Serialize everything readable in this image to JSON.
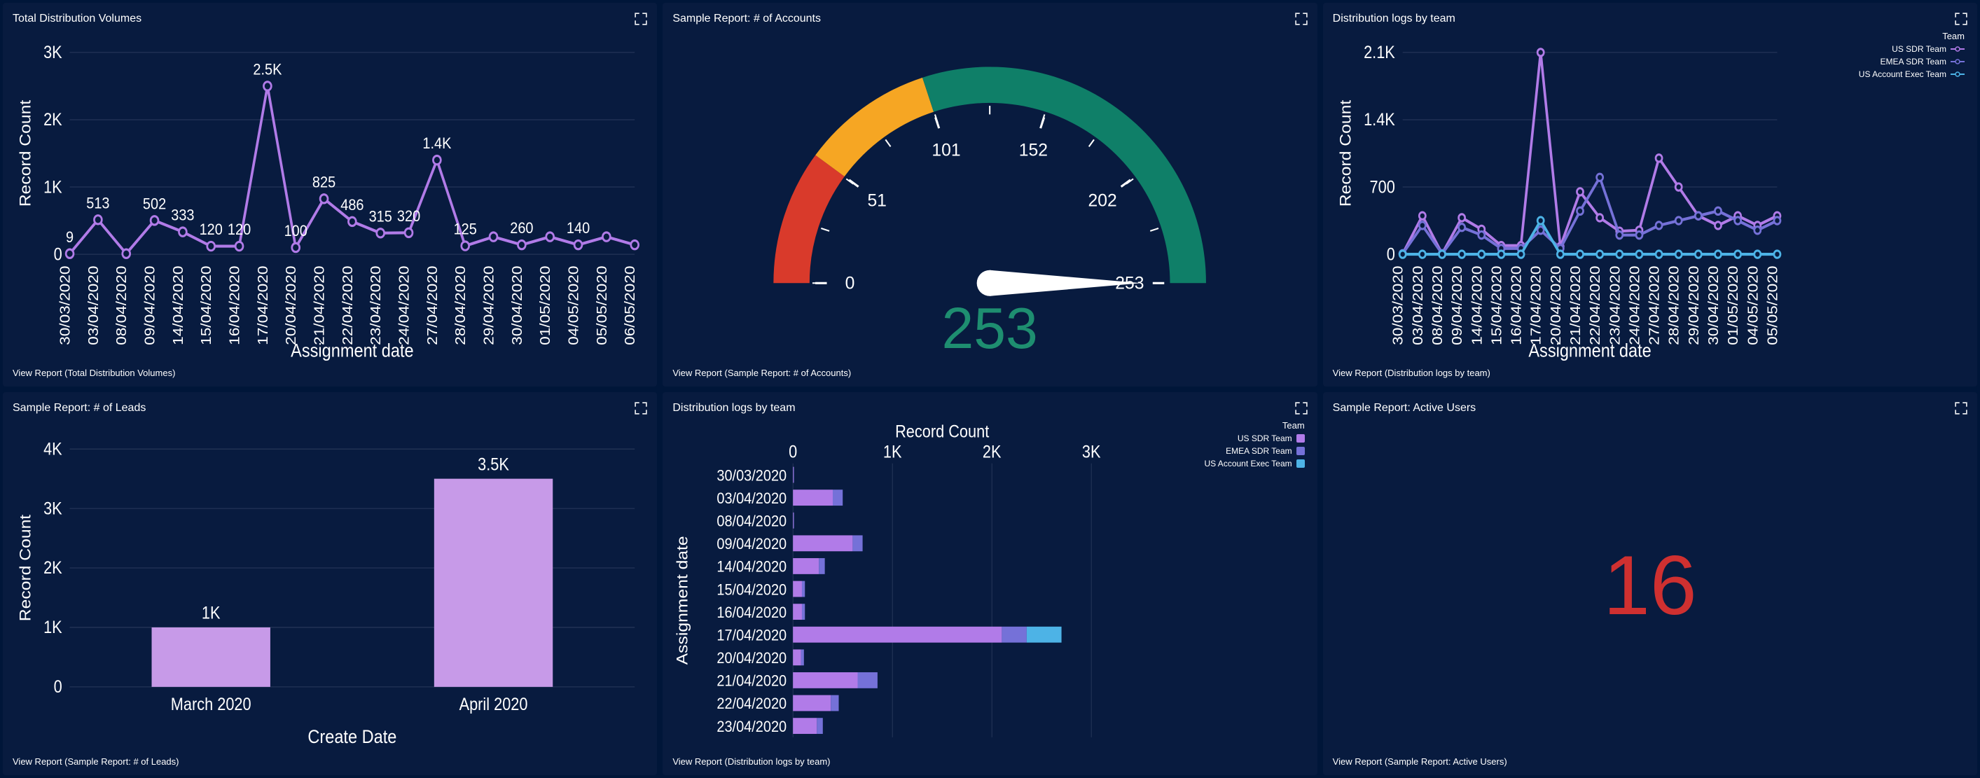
{
  "colors": {
    "bg": "#081b3f",
    "page_bg": "#001639",
    "text": "#ffffff",
    "line_primary": "#b17be8",
    "line_us_sdr": "#b17be8",
    "line_emea": "#7571d8",
    "line_us_ae": "#4db3e6",
    "bar_fill": "#c79ae8",
    "gauge_red": "#d93a2b",
    "gauge_orange": "#f6a623",
    "gauge_green": "#0f7f68",
    "gauge_value": "#1e8e70",
    "big_num": "#cf3030",
    "grid": "#2a3a5c"
  },
  "panels": {
    "tdv": {
      "title": "Total Distribution Volumes",
      "y_label": "Record Count",
      "x_label": "Assignment date",
      "y_ticks": [
        0,
        "1K",
        "2K",
        "3K"
      ],
      "y_tick_vals": [
        0,
        1000,
        2000,
        3000
      ],
      "x_cats": [
        "30/03/2020",
        "03/04/2020",
        "08/04/2020",
        "09/04/2020",
        "14/04/2020",
        "15/04/2020",
        "16/04/2020",
        "17/04/2020",
        "20/04/2020",
        "21/04/2020",
        "22/04/2020",
        "23/04/2020",
        "24/04/2020",
        "27/04/2020",
        "28/04/2020",
        "29/04/2020",
        "30/04/2020",
        "01/05/2020",
        "04/05/2020",
        "05/05/2020",
        "06/05/2020"
      ],
      "values": [
        9,
        513,
        9,
        502,
        333,
        120,
        120,
        2500,
        100,
        825,
        486,
        315,
        320,
        1400,
        125,
        260,
        140,
        260,
        140,
        260,
        140
      ],
      "shown_values": {
        "1": "513",
        "3": "502",
        "4": "333",
        "5": "120",
        "6": "120",
        "7": "2.5K",
        "8": "100",
        "9": "825",
        "10": "486",
        "11": "315",
        "12": "320",
        "13": "1.4K",
        "14": "125",
        "16": "260",
        "18": "140"
      },
      "first_label": "9",
      "footer": "View Report (Total Distribution Volumes)"
    },
    "accounts": {
      "title": "Sample Report: # of Accounts",
      "value": 253,
      "value_str": "253",
      "min": 0,
      "max": 253,
      "ticks": [
        0,
        51,
        101,
        152,
        202,
        253
      ],
      "seg_red_end": 51,
      "seg_orange_end": 101,
      "footer": "View Report (Sample Report: # of Accounts)"
    },
    "dlbt_line": {
      "title": "Distribution logs by team",
      "y_label": "Record Count",
      "x_label": "Assignment date",
      "y_ticks": [
        "0",
        "700",
        "1.4K",
        "2.1K"
      ],
      "y_tick_vals": [
        0,
        700,
        1400,
        2100
      ],
      "legend_title": "Team",
      "legend": [
        {
          "label": "US SDR Team",
          "color": "#b17be8"
        },
        {
          "label": "EMEA SDR Team",
          "color": "#7571d8"
        },
        {
          "label": "US Account Exec Team",
          "color": "#4db3e6"
        }
      ],
      "x_cats": [
        "30/03/2020",
        "03/04/2020",
        "08/04/2020",
        "09/04/2020",
        "14/04/2020",
        "15/04/2020",
        "16/04/2020",
        "17/04/2020",
        "20/04/2020",
        "21/04/2020",
        "22/04/2020",
        "23/04/2020",
        "24/04/2020",
        "27/04/2020",
        "28/04/2020",
        "29/04/2020",
        "30/04/2020",
        "01/05/2020",
        "04/05/2020",
        "05/05/2020"
      ],
      "series": {
        "us_sdr": [
          5,
          400,
          5,
          380,
          260,
          90,
          90,
          2100,
          80,
          650,
          380,
          240,
          250,
          1000,
          700,
          400,
          300,
          400,
          300,
          400
        ],
        "emea": [
          5,
          300,
          5,
          280,
          200,
          60,
          60,
          250,
          60,
          450,
          800,
          200,
          200,
          300,
          350,
          400,
          450,
          350,
          250,
          350
        ],
        "us_ae": [
          0,
          0,
          0,
          0,
          0,
          0,
          0,
          350,
          0,
          0,
          0,
          0,
          0,
          0,
          0,
          0,
          0,
          0,
          0,
          0
        ]
      },
      "footer": "View Report (Distribution logs by team)"
    },
    "leads": {
      "title": "Sample Report: # of Leads",
      "y_label": "Record Count",
      "x_label": "Create Date",
      "y_ticks": [
        "0",
        "1K",
        "2K",
        "3K",
        "4K"
      ],
      "y_tick_vals": [
        0,
        1000,
        2000,
        3000,
        4000
      ],
      "bars": [
        {
          "label": "March 2020",
          "value": 1000,
          "display": "1K"
        },
        {
          "label": "April 2020",
          "value": 3500,
          "display": "3.5K"
        }
      ],
      "footer": "View Report (Sample Report: # of Leads)"
    },
    "dlbt_bar": {
      "title": "Distribution logs by team",
      "x_label": "Record Count",
      "y_label": "Assignment date",
      "x_ticks": [
        "0",
        "1K",
        "2K",
        "3K"
      ],
      "x_tick_vals": [
        0,
        1000,
        2000,
        3000
      ],
      "legend_title": "Team",
      "legend": [
        {
          "label": "US SDR Team",
          "color": "#b17be8"
        },
        {
          "label": "EMEA SDR Team",
          "color": "#7571d8"
        },
        {
          "label": "US Account Exec Team",
          "color": "#4db3e6"
        }
      ],
      "rows": [
        {
          "label": "30/03/2020",
          "us": 5,
          "emea": 5,
          "ae": 0
        },
        {
          "label": "03/04/2020",
          "us": 400,
          "emea": 100,
          "ae": 0
        },
        {
          "label": "08/04/2020",
          "us": 5,
          "emea": 5,
          "ae": 0
        },
        {
          "label": "09/04/2020",
          "us": 600,
          "emea": 100,
          "ae": 0
        },
        {
          "label": "14/04/2020",
          "us": 260,
          "emea": 60,
          "ae": 0
        },
        {
          "label": "15/04/2020",
          "us": 90,
          "emea": 30,
          "ae": 0
        },
        {
          "label": "16/04/2020",
          "us": 90,
          "emea": 30,
          "ae": 0
        },
        {
          "label": "17/04/2020",
          "us": 2100,
          "emea": 250,
          "ae": 350
        },
        {
          "label": "20/04/2020",
          "us": 80,
          "emea": 30,
          "ae": 0
        },
        {
          "label": "21/04/2020",
          "us": 650,
          "emea": 200,
          "ae": 0
        },
        {
          "label": "22/04/2020",
          "us": 380,
          "emea": 80,
          "ae": 0
        },
        {
          "label": "23/04/2020",
          "us": 240,
          "emea": 60,
          "ae": 0
        }
      ],
      "footer": "View Report (Distribution logs by team)"
    },
    "active": {
      "title": "Sample Report: Active Users",
      "value": "16",
      "footer": "View Report (Sample Report: Active Users)"
    }
  }
}
